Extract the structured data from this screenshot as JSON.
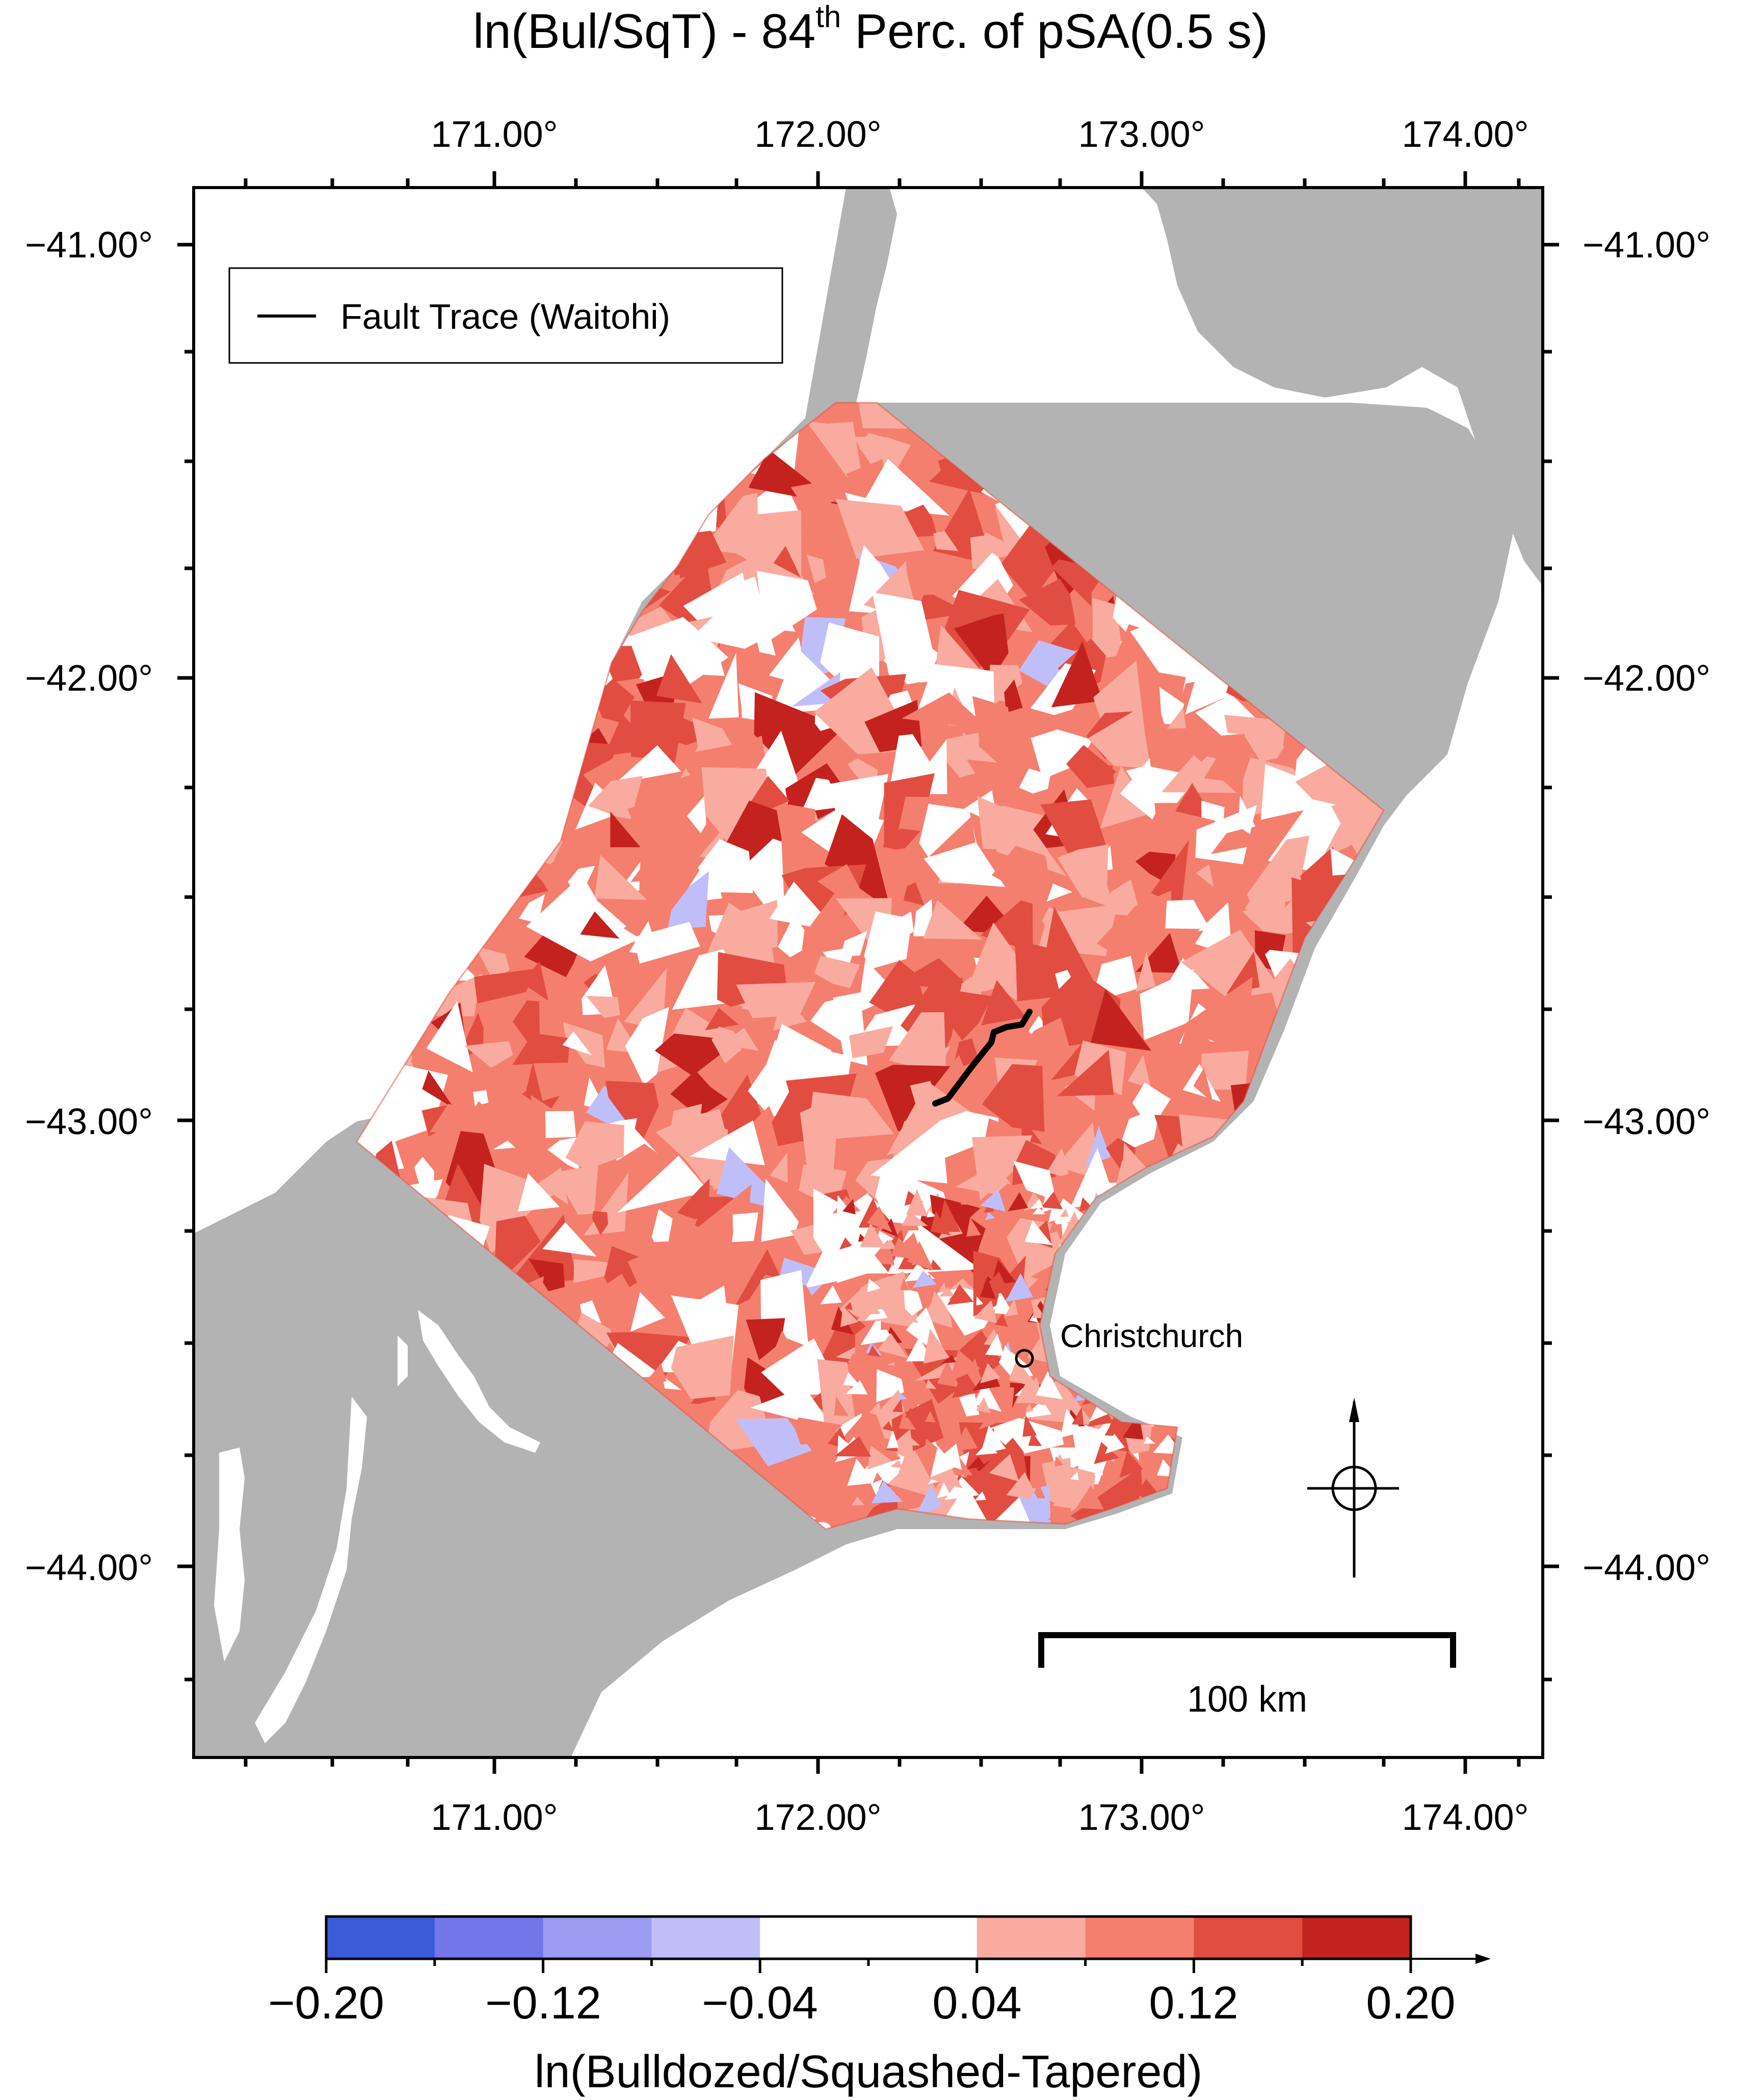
{
  "title": {
    "prefix": "ln(Bul/SqT)  - 84",
    "sup": "th",
    "suffix": " Perc. of pSA(0.5 s)"
  },
  "map": {
    "lon_ticks": [
      "171.00°",
      "172.00°",
      "173.00°",
      "174.00°"
    ],
    "lat_ticks": [
      "−41.00°",
      "−42.00°",
      "−43.00°",
      "−44.00°"
    ],
    "legend_entry": "Fault Trace (Waitohi)",
    "city": "Christchurch",
    "scale_bar": "100 km",
    "colors": {
      "land": "#b3b3b3",
      "water": "#ffffff",
      "fault": "#000000"
    }
  },
  "colorbar": {
    "tick_labels": [
      "−0.20",
      "−0.12",
      "−0.04",
      "0.04",
      "0.12",
      "0.20"
    ],
    "label": "ln(Bulldozed/Squashed-Tapered)",
    "colors": [
      "#3b5bdb",
      "#7276e8",
      "#9b9cf2",
      "#c0bef8",
      "#ffffff",
      "#ffffff",
      "#f9ab9f",
      "#f47f6e",
      "#e14d41",
      "#c3221e"
    ]
  },
  "chart_data": {
    "type": "heatmap",
    "title": "ln(Bul/SqT) - 84th Perc. of pSA(0.5 s)",
    "xlabel": "",
    "ylabel": "",
    "x_ticks": [
      171.0,
      172.0,
      173.0,
      174.0
    ],
    "y_ticks": [
      -41.0,
      -42.0,
      -43.0,
      -44.0
    ],
    "colorbar_range": [
      -0.2,
      0.2
    ],
    "colorbar_levels": [
      -0.2,
      -0.16,
      -0.12,
      -0.08,
      -0.04,
      0.0,
      0.04,
      0.08,
      0.12,
      0.16,
      0.2
    ],
    "colorbar_label": "ln(Bulldozed/Squashed-Tapered)",
    "legend": [
      "Fault Trace (Waitohi)"
    ],
    "annotations": [
      "Christchurch",
      "100 km"
    ]
  }
}
